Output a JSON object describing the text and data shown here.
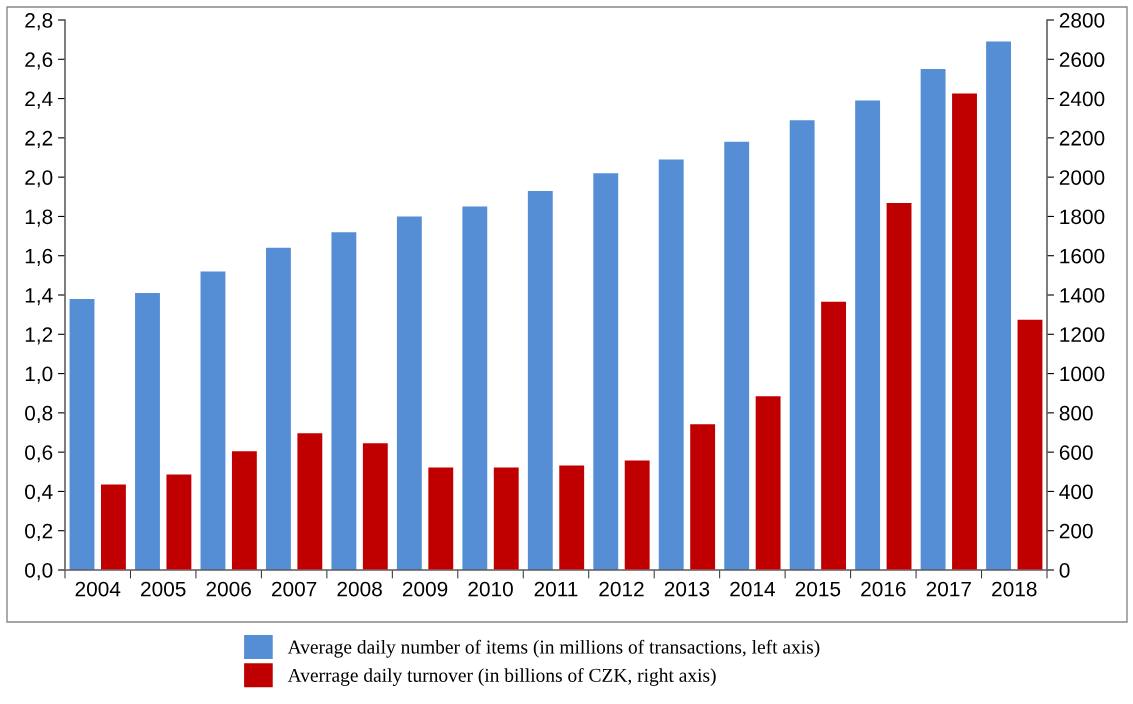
{
  "chart_data": {
    "type": "bar",
    "categories": [
      "2004",
      "2005",
      "2006",
      "2007",
      "2008",
      "2009",
      "2010",
      "2011",
      "2012",
      "2013",
      "2014",
      "2015",
      "2016",
      "2017",
      "2018"
    ],
    "series": [
      {
        "name": "Average daily number of items (in millions of transactions, left axis)",
        "color": "#558ed5",
        "values": [
          1.38,
          1.41,
          1.52,
          1.64,
          1.72,
          1.8,
          1.85,
          1.93,
          2.02,
          2.09,
          2.18,
          2.29,
          2.39,
          2.55,
          2.69
        ]
      },
      {
        "name": "Averrage daily turnover (in billions of CZK, right axis)",
        "color": "#c00000",
        "axis": "y2",
        "values": [
          435,
          486,
          604,
          696,
          645,
          522,
          522,
          532,
          558,
          742,
          885,
          1366,
          1868,
          2426,
          1274
        ]
      }
    ],
    "ylim": [
      0,
      2.8
    ],
    "yticks": [
      {
        "value": 0,
        "label": "0,0"
      },
      {
        "value": 0.2,
        "label": "0,2"
      },
      {
        "value": 0.4,
        "label": "0,4"
      },
      {
        "value": 0.6,
        "label": "0,6"
      },
      {
        "value": 0.8,
        "label": "0,8"
      },
      {
        "value": 1.0,
        "label": "1,0"
      },
      {
        "value": 1.2,
        "label": "1,2"
      },
      {
        "value": 1.4,
        "label": "1,4"
      },
      {
        "value": 1.6,
        "label": "1,6"
      },
      {
        "value": 1.8,
        "label": "1,8"
      },
      {
        "value": 2.0,
        "label": "2,0"
      },
      {
        "value": 2.2,
        "label": "2,2"
      },
      {
        "value": 2.4,
        "label": "2,4"
      },
      {
        "value": 2.6,
        "label": "2,6"
      },
      {
        "value": 2.8,
        "label": "2,8"
      }
    ],
    "y2lim": [
      0,
      2800
    ],
    "y2ticks": [
      0,
      200,
      400,
      600,
      800,
      1000,
      1200,
      1400,
      1600,
      1800,
      2000,
      2200,
      2400,
      2600,
      2800
    ],
    "grid": false,
    "legend": "bottom"
  }
}
